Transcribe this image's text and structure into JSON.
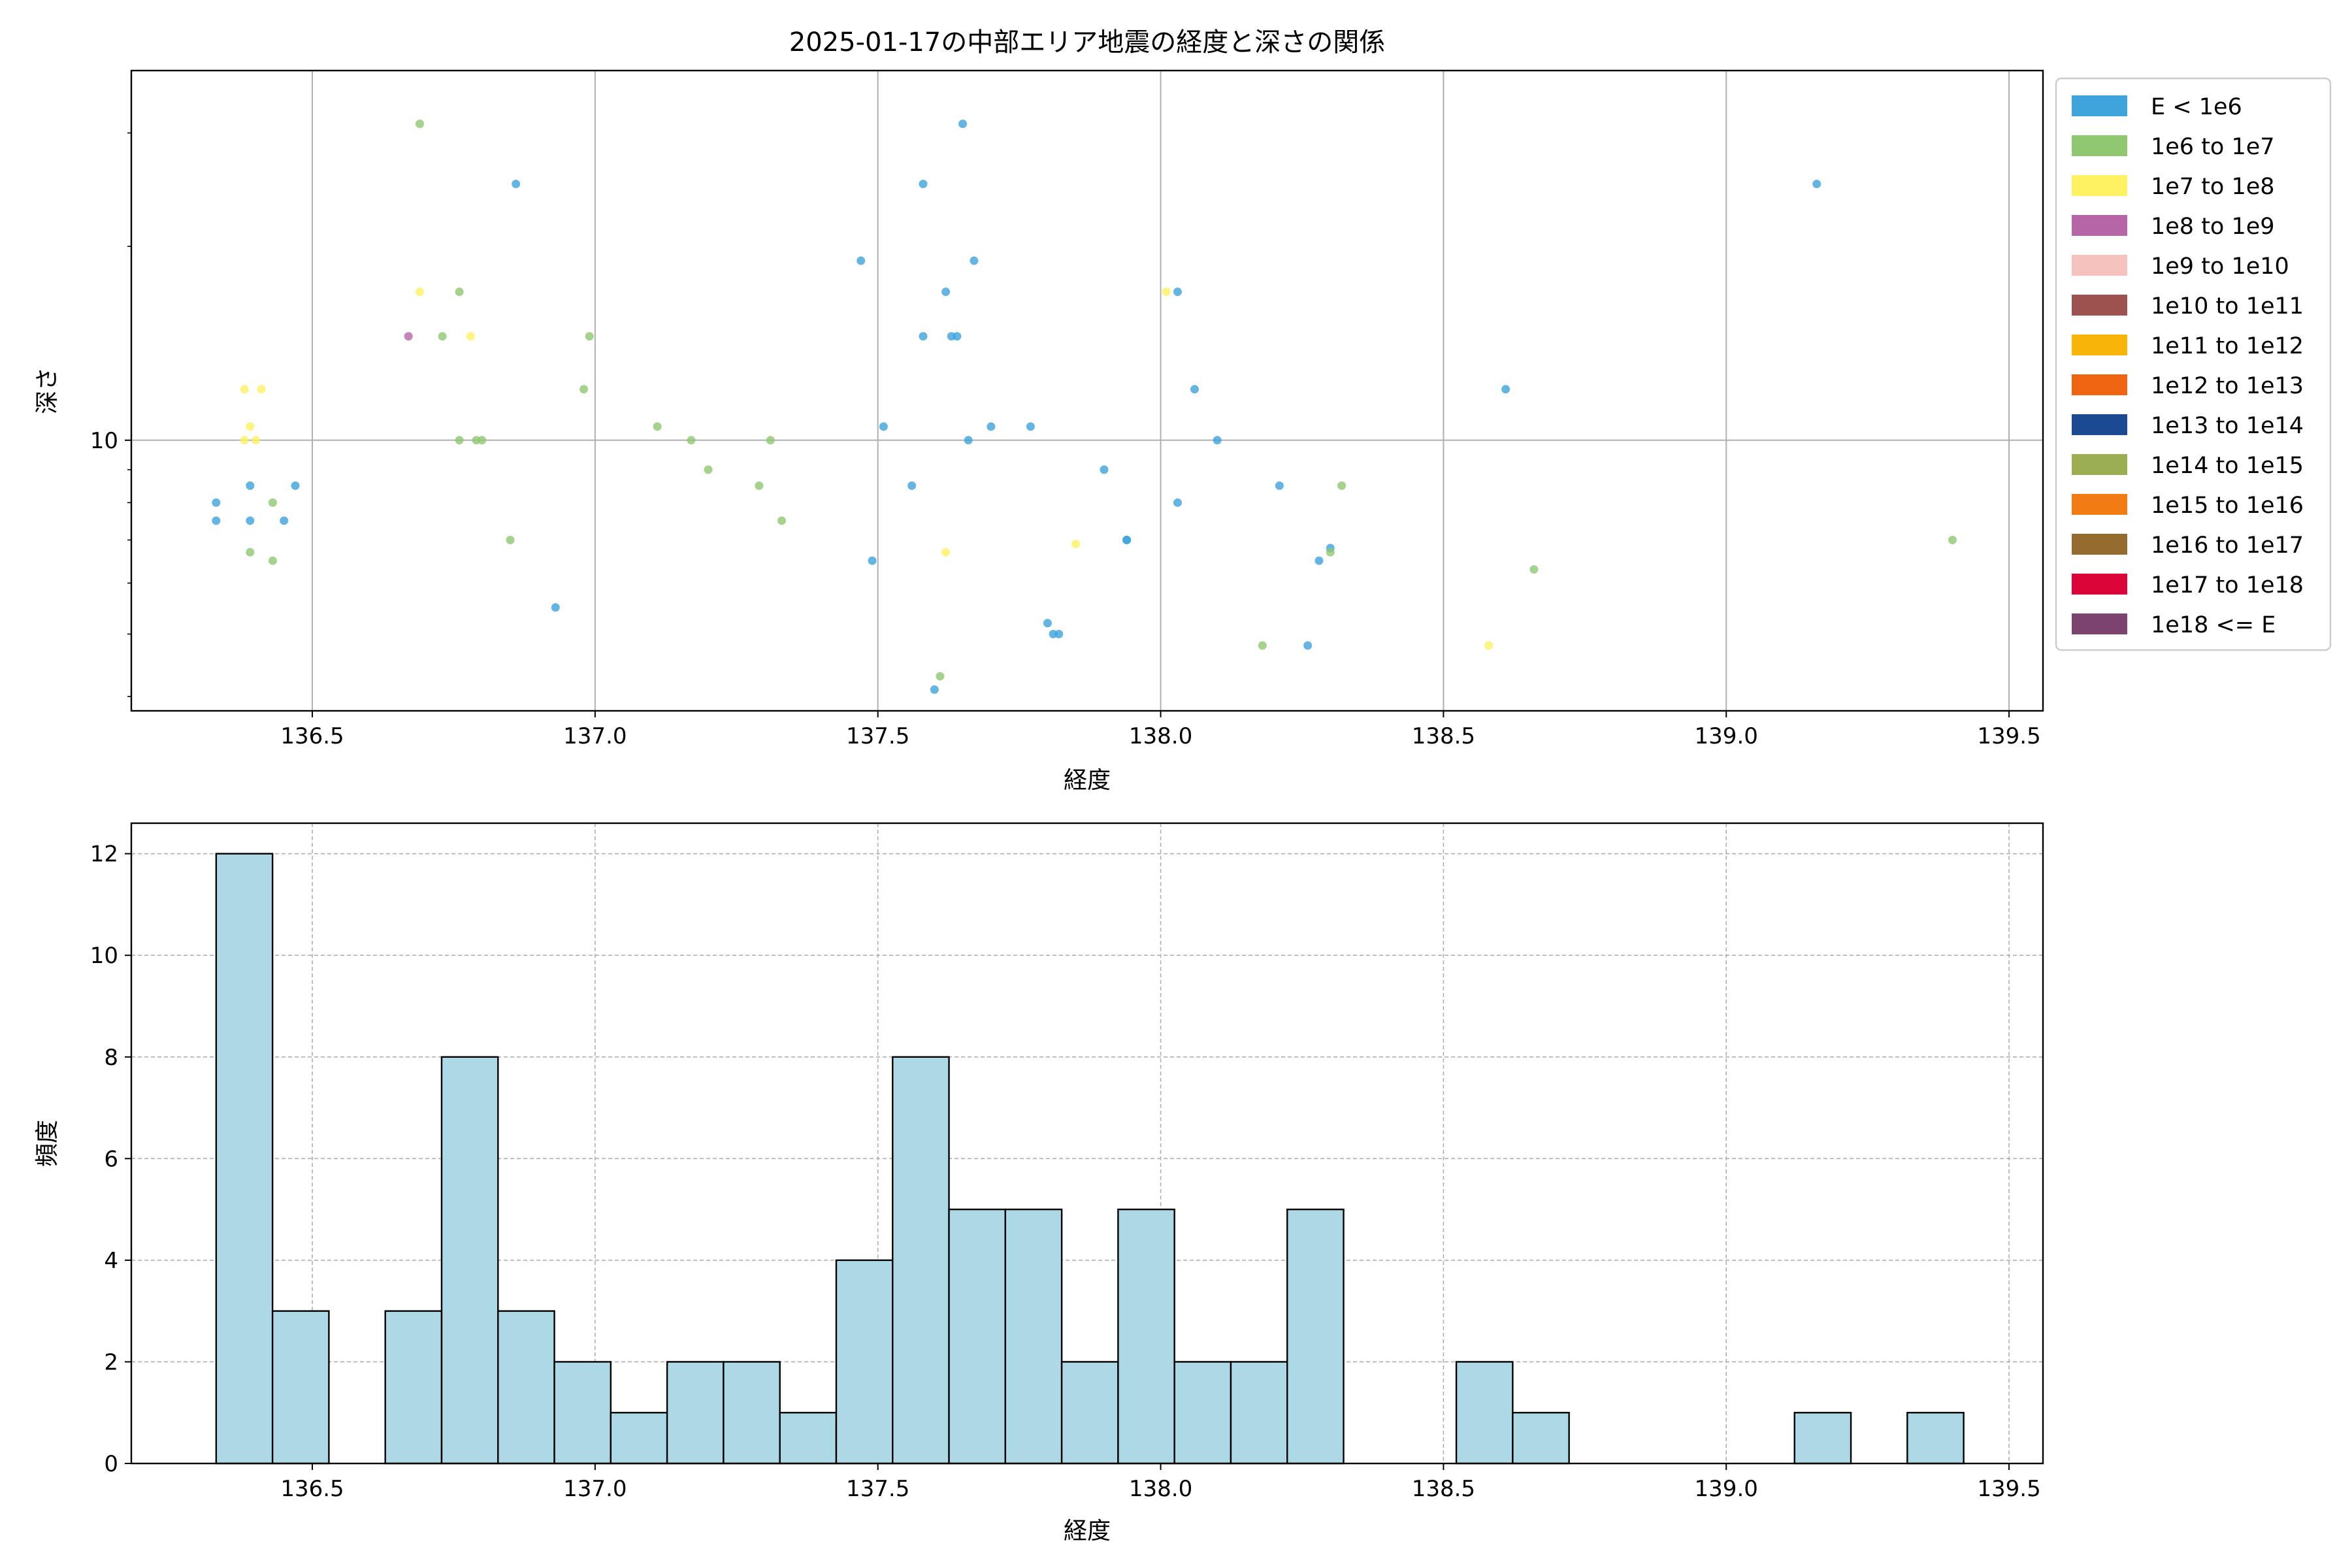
{
  "chart_data": [
    {
      "type": "scatter",
      "title": "2025-01-17の中部エリア地震の経度と深さの関係",
      "xlabel": "経度",
      "ylabel": "深さ",
      "xlim": [
        136.18,
        139.56
      ],
      "ylim": [
        3.8,
        37.5
      ],
      "yscale": "log",
      "grid": true,
      "legend_placement": "outside-right",
      "x_ticks": [
        "136.5",
        "137.0",
        "137.5",
        "138.0",
        "138.5",
        "139.0",
        "139.5"
      ],
      "y_major_tick_label": "10",
      "legend": [
        {
          "label": "E < 1e6",
          "color": "#3fa3dc"
        },
        {
          "label": "1e6 to 1e7",
          "color": "#8fc871"
        },
        {
          "label": "1e7 to 1e8",
          "color": "#fef162"
        },
        {
          "label": "1e8 to 1e9",
          "color": "#b666a6"
        },
        {
          "label": "1e9 to 1e10",
          "color": "#f6c2bd"
        },
        {
          "label": "1e10 to 1e11",
          "color": "#9c524f"
        },
        {
          "label": "1e11 to 1e12",
          "color": "#f7b50a"
        },
        {
          "label": "1e12 to 1e13",
          "color": "#ef6410"
        },
        {
          "label": "1e13 to 1e14",
          "color": "#1b4a92"
        },
        {
          "label": "1e14 to 1e15",
          "color": "#9cae52"
        },
        {
          "label": "1e15 to 1e16",
          "color": "#f07c12"
        },
        {
          "label": "1e16 to 1e17",
          "color": "#956b2f"
        },
        {
          "label": "1e17 to 1e18",
          "color": "#dc053a"
        },
        {
          "label": "1e18 <= E",
          "color": "#7d436f"
        }
      ],
      "series": [
        {
          "class": 0,
          "x": [
            136.33,
            136.33,
            136.39,
            136.39,
            136.45,
            136.47,
            136.86,
            136.93,
            137.47,
            137.49,
            137.51,
            137.56,
            137.58,
            137.58,
            137.6,
            137.62,
            137.63,
            137.64,
            137.65,
            137.66,
            137.67,
            137.7,
            137.77,
            137.8,
            137.81,
            137.82,
            137.9,
            137.94,
            137.94,
            138.03,
            138.03,
            138.06,
            138.1,
            138.21,
            138.26,
            138.28,
            138.3,
            138.61,
            139.16
          ],
          "y": [
            8.0,
            7.5,
            8.5,
            7.5,
            7.5,
            8.5,
            25.0,
            5.5,
            19.0,
            6.5,
            10.5,
            8.5,
            14.5,
            25.0,
            4.1,
            17.0,
            14.5,
            14.5,
            31.0,
            10.0,
            19.0,
            10.5,
            10.5,
            5.2,
            5.0,
            5.0,
            9.0,
            7.0,
            7.0,
            8.0,
            17.0,
            12.0,
            10.0,
            8.5,
            4.8,
            6.5,
            6.8,
            12.0,
            25.0
          ]
        },
        {
          "class": 1,
          "x": [
            136.39,
            136.43,
            136.43,
            136.69,
            136.73,
            136.76,
            136.76,
            136.79,
            136.8,
            136.85,
            136.98,
            136.99,
            137.11,
            137.17,
            137.2,
            137.29,
            137.31,
            137.33,
            137.61,
            138.18,
            138.3,
            138.32,
            138.66,
            139.4
          ],
          "y": [
            6.7,
            8.0,
            6.5,
            31.0,
            14.5,
            17.0,
            10.0,
            10.0,
            10.0,
            7.0,
            12.0,
            14.5,
            10.5,
            10.0,
            9.0,
            8.5,
            10.0,
            7.5,
            4.3,
            4.8,
            6.7,
            8.5,
            6.3,
            7.0
          ],
          "color": "#8fc871"
        },
        {
          "class": 2,
          "x": [
            136.38,
            136.38,
            136.39,
            136.4,
            136.41,
            136.69,
            136.78,
            137.62,
            137.85,
            138.01,
            138.58
          ],
          "y": [
            12.0,
            10.0,
            10.5,
            10.0,
            12.0,
            17.0,
            14.5,
            6.7,
            6.9,
            17.0,
            4.8
          ]
        },
        {
          "class": 3,
          "x": [
            136.67
          ],
          "y": [
            14.5
          ]
        }
      ]
    },
    {
      "type": "bar",
      "xlabel": "経度",
      "ylabel": "頻度",
      "xlim": [
        136.18,
        139.56
      ],
      "ylim": [
        0,
        12.6
      ],
      "grid": true,
      "bar_color": "#add8e6",
      "x_ticks": [
        "136.5",
        "137.0",
        "137.5",
        "138.0",
        "138.5",
        "139.0",
        "139.5"
      ],
      "y_ticks": [
        "0",
        "2",
        "4",
        "6",
        "8",
        "10",
        "12"
      ],
      "bin_start": 136.33,
      "bin_width": 0.09967,
      "values": [
        12,
        3,
        0,
        3,
        8,
        3,
        2,
        1,
        2,
        2,
        1,
        4,
        8,
        5,
        5,
        2,
        5,
        2,
        2,
        5,
        0,
        0,
        2,
        1,
        0,
        0,
        0,
        0,
        1,
        0,
        1
      ]
    }
  ]
}
